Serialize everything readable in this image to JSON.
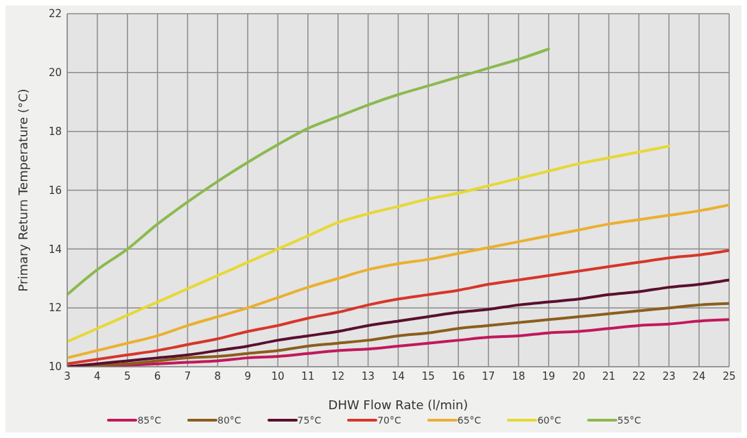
{
  "chart_data": {
    "type": "line",
    "xlabel": "DHW Flow Rate (l/min)",
    "ylabel": "Primary Return Temperature (°C)",
    "x": [
      3,
      4,
      5,
      6,
      7,
      8,
      9,
      10,
      11,
      12,
      13,
      14,
      15,
      16,
      17,
      18,
      19,
      20,
      21,
      22,
      23,
      24,
      25
    ],
    "xlim": [
      3,
      25
    ],
    "xticks": [
      3,
      4,
      5,
      6,
      7,
      8,
      9,
      10,
      11,
      12,
      13,
      14,
      15,
      16,
      17,
      18,
      19,
      20,
      21,
      22,
      23,
      24,
      25
    ],
    "ylim": [
      10,
      22
    ],
    "yticks": [
      10,
      12,
      14,
      16,
      18,
      20,
      22
    ],
    "grid": true,
    "legend": "bottom",
    "marker": "none",
    "line_style": "solid",
    "series": [
      {
        "name": "85°C",
        "color": "#c2185b",
        "values": [
          10.0,
          10.0,
          10.05,
          10.1,
          10.15,
          10.2,
          10.3,
          10.35,
          10.45,
          10.55,
          10.6,
          10.7,
          10.8,
          10.9,
          11.0,
          11.05,
          11.15,
          11.2,
          11.3,
          11.4,
          11.45,
          11.55,
          11.6
        ]
      },
      {
        "name": "80°C",
        "color": "#8b5e1e",
        "values": [
          10.0,
          10.05,
          10.1,
          10.2,
          10.3,
          10.35,
          10.45,
          10.55,
          10.7,
          10.8,
          10.9,
          11.05,
          11.15,
          11.3,
          11.4,
          11.5,
          11.6,
          11.7,
          11.8,
          11.9,
          12.0,
          12.1,
          12.15
        ]
      },
      {
        "name": "75°C",
        "color": "#5a0f2e",
        "values": [
          10.0,
          10.1,
          10.2,
          10.3,
          10.4,
          10.55,
          10.7,
          10.9,
          11.05,
          11.2,
          11.4,
          11.55,
          11.7,
          11.85,
          11.95,
          12.1,
          12.2,
          12.3,
          12.45,
          12.55,
          12.7,
          12.8,
          12.95
        ]
      },
      {
        "name": "70°C",
        "color": "#d7362a",
        "values": [
          10.1,
          10.25,
          10.4,
          10.55,
          10.75,
          10.95,
          11.2,
          11.4,
          11.65,
          11.85,
          12.1,
          12.3,
          12.45,
          12.6,
          12.8,
          12.95,
          13.1,
          13.25,
          13.4,
          13.55,
          13.7,
          13.8,
          13.95
        ]
      },
      {
        "name": "65°C",
        "color": "#eab030",
        "values": [
          10.3,
          10.55,
          10.8,
          11.05,
          11.4,
          11.7,
          12.0,
          12.35,
          12.7,
          13.0,
          13.3,
          13.5,
          13.65,
          13.85,
          14.05,
          14.25,
          14.45,
          14.65,
          14.85,
          15.0,
          15.15,
          15.3,
          15.5
        ]
      },
      {
        "name": "60°C",
        "color": "#e6d835",
        "x": [
          3,
          4,
          5,
          6,
          7,
          8,
          9,
          10,
          11,
          12,
          13,
          14,
          15,
          16,
          17,
          18,
          19,
          20,
          21,
          22,
          23
        ],
        "values": [
          10.85,
          11.3,
          11.75,
          12.2,
          12.65,
          13.1,
          13.55,
          14.0,
          14.45,
          14.9,
          15.2,
          15.45,
          15.7,
          15.9,
          16.15,
          16.4,
          16.65,
          16.9,
          17.1,
          17.3,
          17.5
        ]
      },
      {
        "name": "55°C",
        "color": "#8cb94f",
        "x": [
          3,
          4,
          5,
          6,
          7,
          8,
          9,
          10,
          11,
          12,
          13,
          14,
          15,
          16,
          17,
          18,
          19
        ],
        "values": [
          12.45,
          13.3,
          14.0,
          14.85,
          15.6,
          16.3,
          16.95,
          17.55,
          18.1,
          18.5,
          18.9,
          19.25,
          19.55,
          19.85,
          20.15,
          20.45,
          20.8
        ]
      }
    ]
  }
}
